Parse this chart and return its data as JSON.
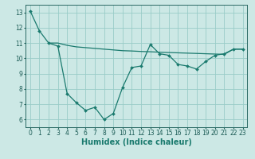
{
  "line1_x": [
    0,
    1,
    2,
    3,
    4,
    5,
    6,
    7,
    8,
    9,
    10,
    11,
    12,
    13,
    14,
    15,
    16,
    17,
    18,
    19,
    20,
    21,
    22,
    23
  ],
  "line1_y": [
    13.1,
    11.8,
    11.0,
    10.8,
    7.7,
    7.1,
    6.6,
    6.8,
    6.0,
    6.4,
    8.1,
    9.4,
    9.5,
    10.9,
    10.3,
    10.2,
    9.6,
    9.5,
    9.3,
    9.8,
    10.2,
    10.3,
    10.6,
    10.6
  ],
  "line2_x": [
    2,
    3,
    4,
    5,
    6,
    7,
    8,
    9,
    10,
    11,
    12,
    13,
    14,
    15,
    16,
    17,
    18,
    19,
    20,
    21,
    22,
    23
  ],
  "line2_y": [
    11.0,
    11.0,
    10.85,
    10.75,
    10.7,
    10.65,
    10.6,
    10.55,
    10.5,
    10.48,
    10.45,
    10.43,
    10.4,
    10.38,
    10.36,
    10.34,
    10.32,
    10.3,
    10.28,
    10.26,
    10.6,
    10.6
  ],
  "line_color": "#1a7a6e",
  "bg_color": "#cce8e5",
  "grid_color": "#99ccc8",
  "xlabel": "Humidex (Indice chaleur)",
  "xlim": [
    -0.5,
    23.5
  ],
  "ylim": [
    5.5,
    13.5
  ],
  "yticks": [
    6,
    7,
    8,
    9,
    10,
    11,
    12,
    13
  ],
  "xticks": [
    0,
    1,
    2,
    3,
    4,
    5,
    6,
    7,
    8,
    9,
    10,
    11,
    12,
    13,
    14,
    15,
    16,
    17,
    18,
    19,
    20,
    21,
    22,
    23
  ],
  "xlabel_fontsize": 7,
  "tick_fontsize": 5.5
}
